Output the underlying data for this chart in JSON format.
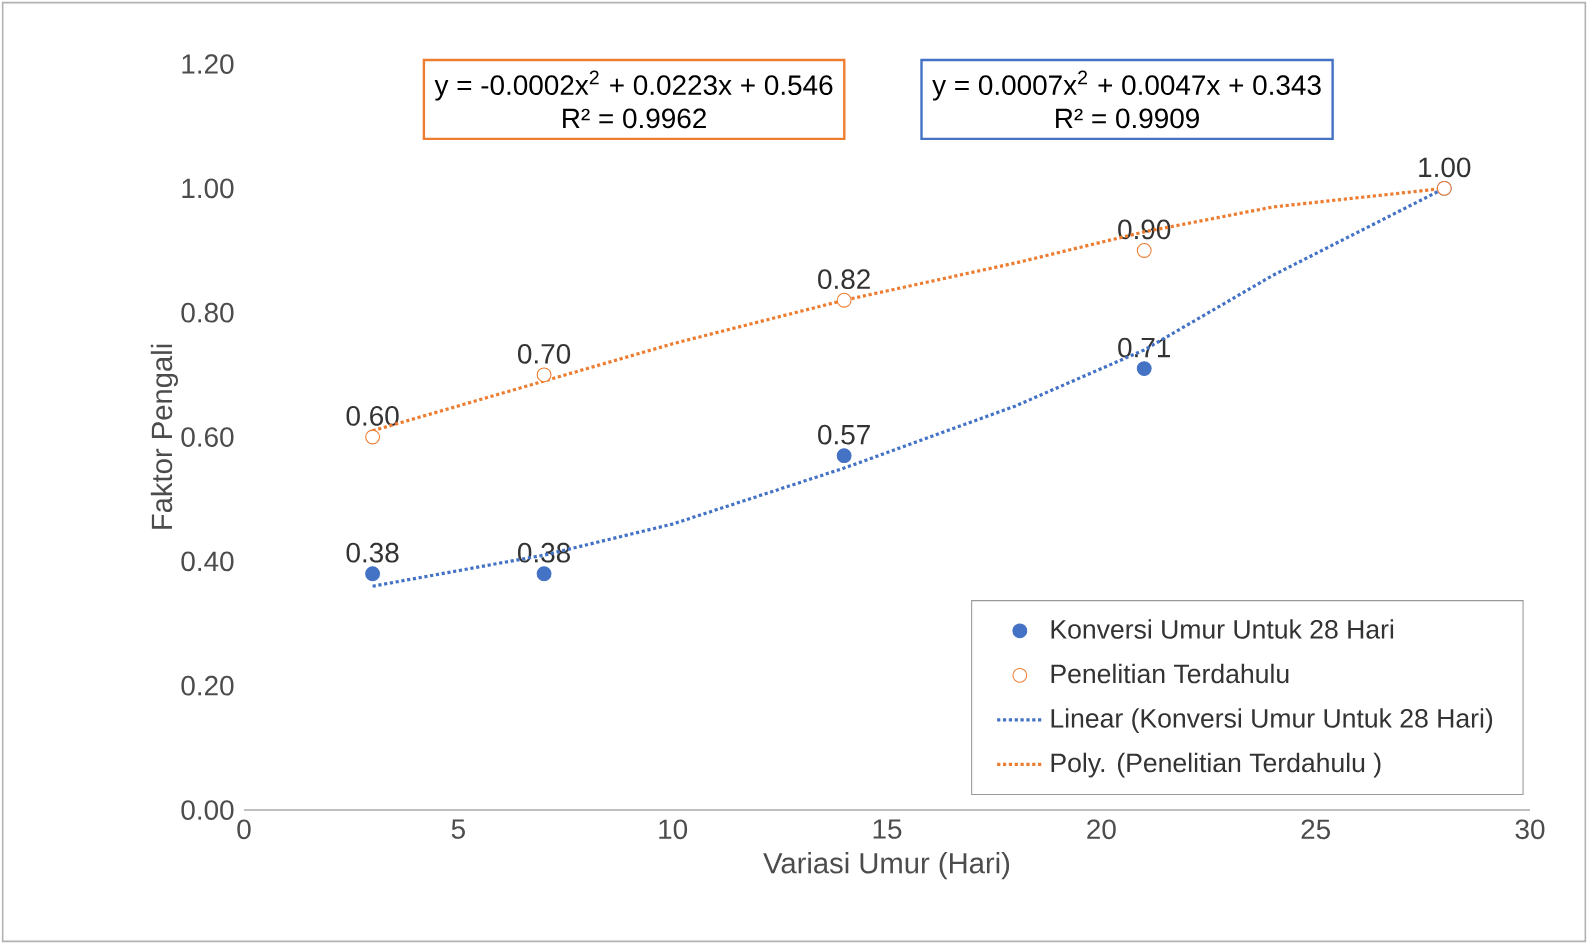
{
  "chart_data": {
    "type": "scatter",
    "xlabel": "Variasi Umur (Hari)",
    "ylabel": "Faktor Pengali",
    "x": [
      3,
      7,
      14,
      21,
      28
    ],
    "series": [
      {
        "name": "Konversi Umur Untuk 28 Hari",
        "color": "#4472c4",
        "marker": "circle",
        "values": [
          0.38,
          0.38,
          0.57,
          0.71,
          1.0
        ],
        "value_labels": [
          "0.38",
          "0.38",
          "0.57",
          "0.71",
          "1.00"
        ]
      },
      {
        "name": "Penelitian Terdahulu",
        "color": "#ed7d31",
        "marker": "circle",
        "values": [
          0.6,
          0.7,
          0.82,
          0.9,
          1.0
        ],
        "value_labels": [
          "0.60",
          "0.70",
          "0.82",
          "0.90",
          null
        ]
      },
      {
        "name": "Linear (Konversi Umur Untuk 28 Hari)",
        "color": "#4472c4",
        "type": "line",
        "line_style": "dotted",
        "marker": "none",
        "x": [
          3,
          7,
          10,
          14,
          18,
          21,
          24,
          28
        ],
        "values": [
          0.36,
          0.41,
          0.46,
          0.55,
          0.65,
          0.74,
          0.86,
          1.0
        ]
      },
      {
        "name": "Poly. (Penelitian Terdahulu )",
        "color": "#ed7d31",
        "type": "line",
        "line_style": "dotted",
        "marker": "none",
        "x": [
          3,
          7,
          10,
          14,
          18,
          21,
          24,
          28
        ],
        "values": [
          0.61,
          0.69,
          0.75,
          0.82,
          0.88,
          0.93,
          0.97,
          1.0
        ]
      }
    ],
    "annotations": [
      "y = -0.0002x$^{2}$ + 0.0223x + 0.546",
      "R² = 0.9962",
      "y = 0.0007x$^{2}$ + 0.0047x + 0.343",
      "R² = 0.9909"
    ],
    "xlim": [
      0,
      30
    ],
    "xticks": [
      0,
      5,
      10,
      15,
      20,
      25,
      30
    ],
    "ylim": [
      0,
      1.2
    ],
    "yticks": [
      {
        "value": 0,
        "label": "0.00"
      },
      {
        "value": 0.2,
        "label": "0.20"
      },
      {
        "value": 0.4,
        "label": "0.40"
      },
      {
        "value": 0.6,
        "label": "0.60"
      },
      {
        "value": 0.8,
        "label": "0.80"
      },
      {
        "value": 1.0,
        "label": "1.00"
      },
      {
        "value": 1.2,
        "label": "1.20"
      }
    ],
    "legend": "bottom right",
    "grid": false
  }
}
